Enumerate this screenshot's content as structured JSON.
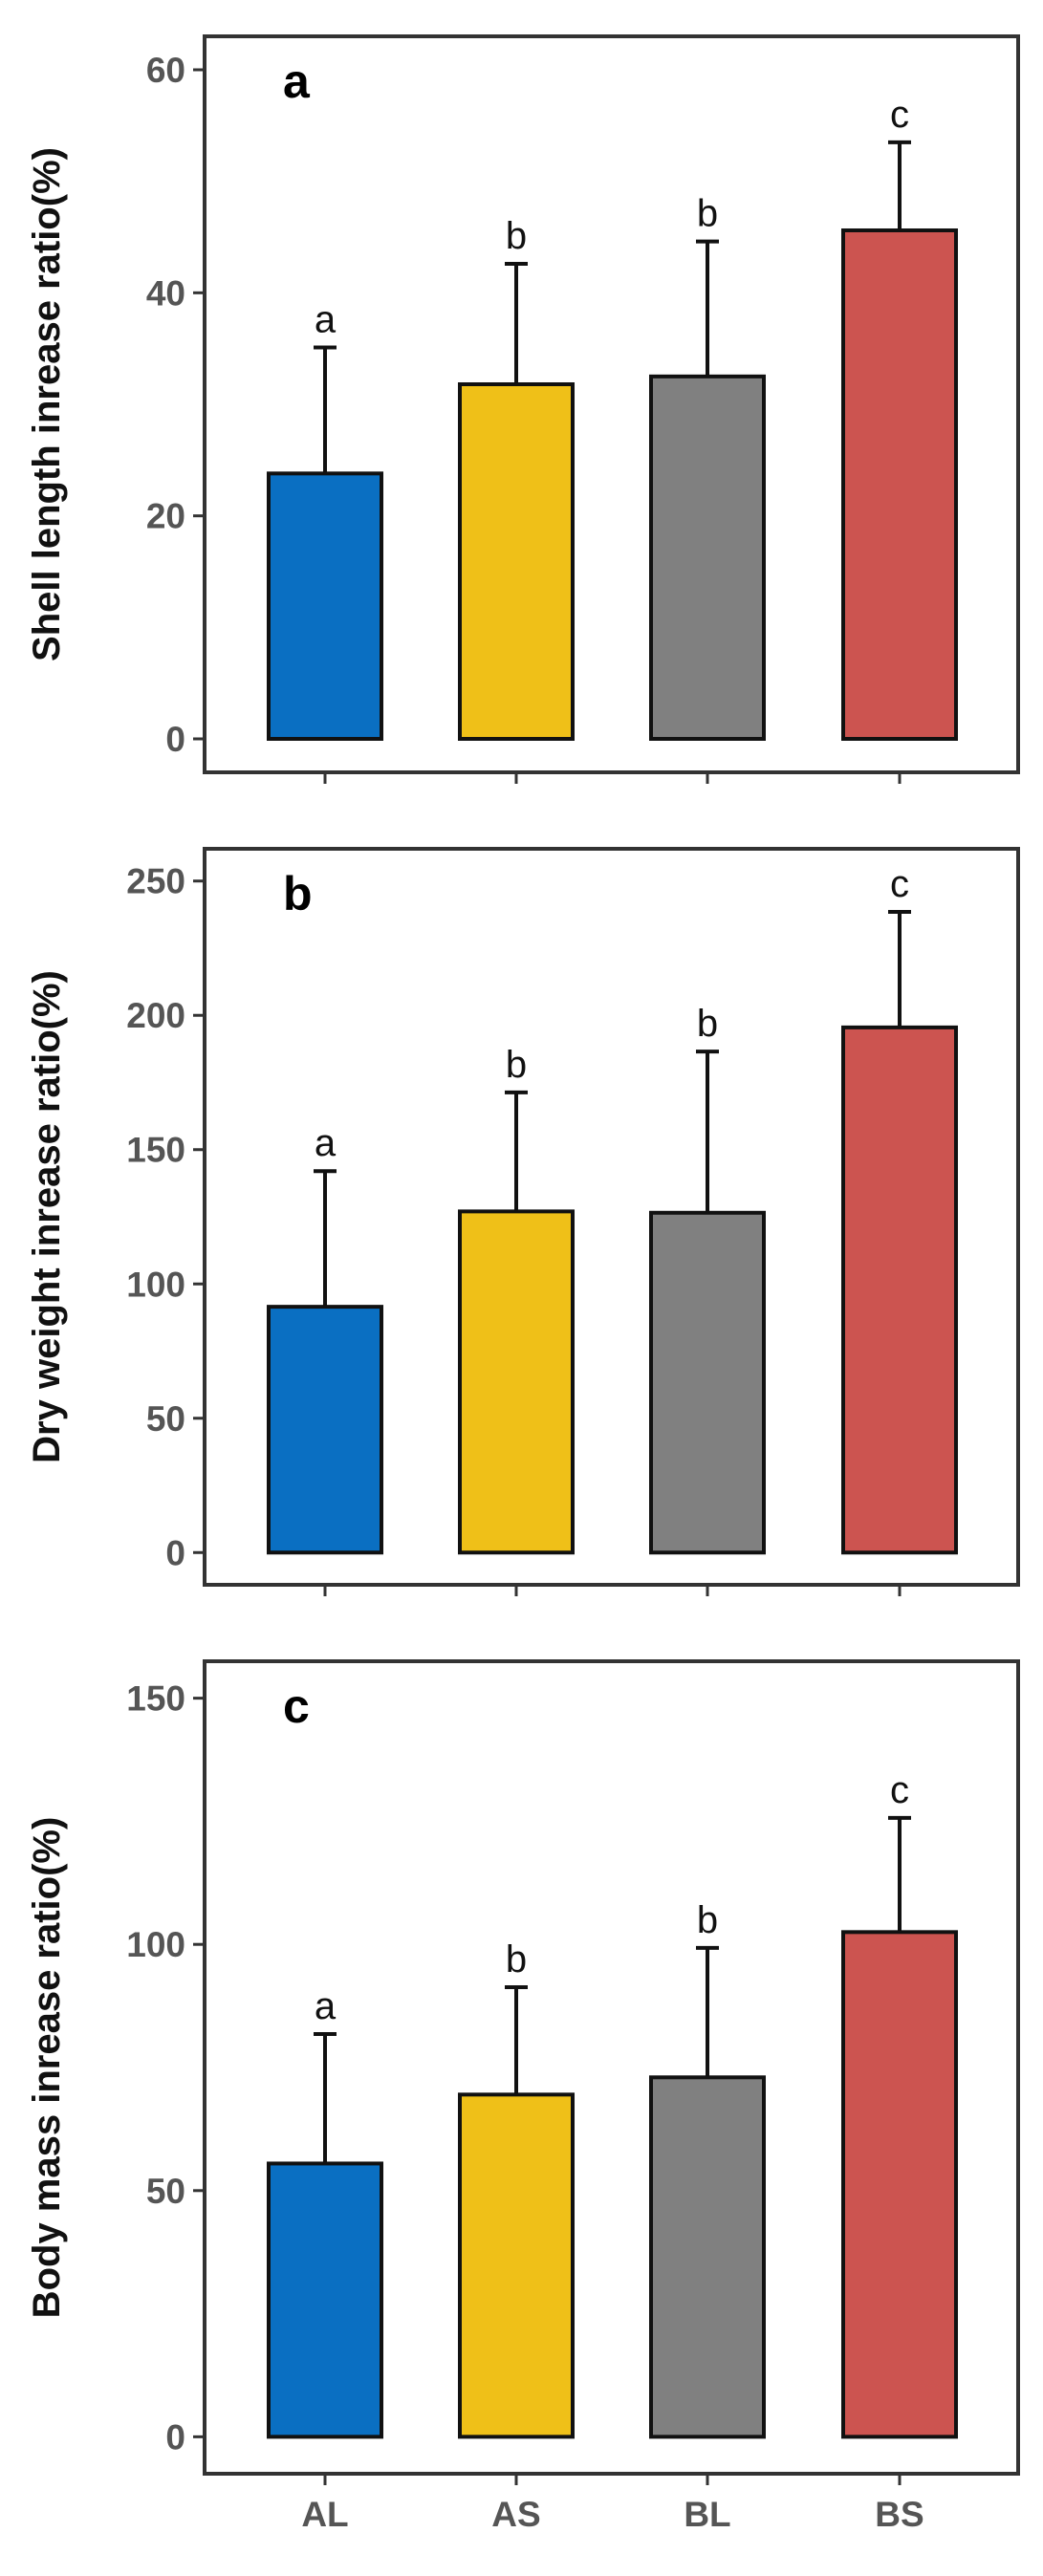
{
  "colors": {
    "AL": "#0a6fc2",
    "AS": "#efc018",
    "BL": "#808080",
    "BS": "#cc5450"
  },
  "chart_data": [
    {
      "type": "bar",
      "panel_label": "a",
      "ylabel": "Shell length inrease ratio(%)",
      "categories": [
        "AL",
        "AS",
        "BL",
        "BS"
      ],
      "values": [
        23.8,
        31.8,
        32.5,
        45.6
      ],
      "errors": [
        11.3,
        10.8,
        12.1,
        7.9
      ],
      "significance": [
        "a",
        "b",
        "b",
        "c"
      ],
      "ylim": [
        -3,
        63
      ],
      "yticks": [
        0,
        20,
        40,
        60
      ],
      "xlabels_shown": false
    },
    {
      "type": "bar",
      "panel_label": "b",
      "ylabel": "Dry weight inrease ratio(%)",
      "categories": [
        "AL",
        "AS",
        "BL",
        "BS"
      ],
      "values": [
        91.5,
        127,
        126.5,
        195.5
      ],
      "errors": [
        50.5,
        44.3,
        60,
        43
      ],
      "significance": [
        "a",
        "b",
        "b",
        "c"
      ],
      "ylim": [
        -12,
        262
      ],
      "yticks": [
        0,
        50,
        100,
        150,
        200,
        250
      ],
      "xlabels_shown": false
    },
    {
      "type": "bar",
      "panel_label": "c",
      "ylabel": "Body mass inrease ratio(%)",
      "categories": [
        "AL",
        "AS",
        "BL",
        "BS"
      ],
      "values": [
        55.5,
        69.5,
        73,
        102.5
      ],
      "errors": [
        26.3,
        21.8,
        26.3,
        23.2
      ],
      "significance": [
        "a",
        "b",
        "b",
        "c"
      ],
      "ylim": [
        -7.5,
        157.5
      ],
      "yticks": [
        0,
        50,
        100,
        150
      ],
      "xlabels_shown": true
    }
  ]
}
